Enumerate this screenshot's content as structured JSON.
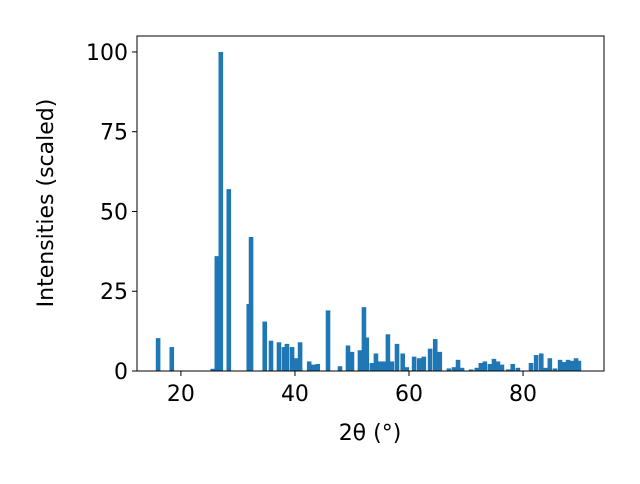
{
  "chart_data": {
    "type": "bar",
    "xlabel": "2θ (°)",
    "ylabel": "Intensities (scaled)",
    "x": [
      16.0,
      18.4,
      25.6,
      26.3,
      27.0,
      28.4,
      31.9,
      32.3,
      34.7,
      35.8,
      37.2,
      38.1,
      38.6,
      39.5,
      40.2,
      40.9,
      42.5,
      43.3,
      44.0,
      45.8,
      47.9,
      49.3,
      50.0,
      51.4,
      52.1,
      52.6,
      53.5,
      54.2,
      54.9,
      55.6,
      56.3,
      57.0,
      57.9,
      58.9,
      59.6,
      60.9,
      61.8,
      62.6,
      63.7,
      64.6,
      65.4,
      67.0,
      67.9,
      68.6,
      69.3,
      70.9,
      71.9,
      72.6,
      73.3,
      74.2,
      74.9,
      75.6,
      76.3,
      77.4,
      78.2,
      79.1,
      81.4,
      82.3,
      83.2,
      83.9,
      84.7,
      85.6,
      86.5,
      87.2,
      87.9,
      88.6,
      89.3,
      89.8
    ],
    "values": [
      10.3,
      7.5,
      0.7,
      36,
      100,
      57,
      21,
      42,
      15.5,
      9.5,
      9,
      7.5,
      8.5,
      7.5,
      4,
      9,
      3,
      2,
      2.2,
      19,
      1.5,
      8,
      6,
      6.5,
      20,
      10.5,
      2.5,
      5.5,
      3,
      3,
      11.5,
      3,
      8.5,
      5.5,
      1.2,
      4.5,
      4,
      4.5,
      7,
      10,
      6,
      0.8,
      1.2,
      3.5,
      1,
      0.5,
      1,
      2.5,
      3,
      2.2,
      3.8,
      3,
      2,
      0.5,
      2.2,
      1,
      2.5,
      5,
      5.5,
      1,
      4,
      0.8,
      3.5,
      2.8,
      3.5,
      3.2,
      4,
      3.2
    ],
    "color": "#1f77b4",
    "xlim": [
      12.3,
      94.2
    ],
    "xticks": [
      20,
      40,
      60,
      80
    ],
    "ylim": [
      0,
      105
    ],
    "yticks": [
      0,
      25,
      50,
      75,
      100
    ]
  }
}
